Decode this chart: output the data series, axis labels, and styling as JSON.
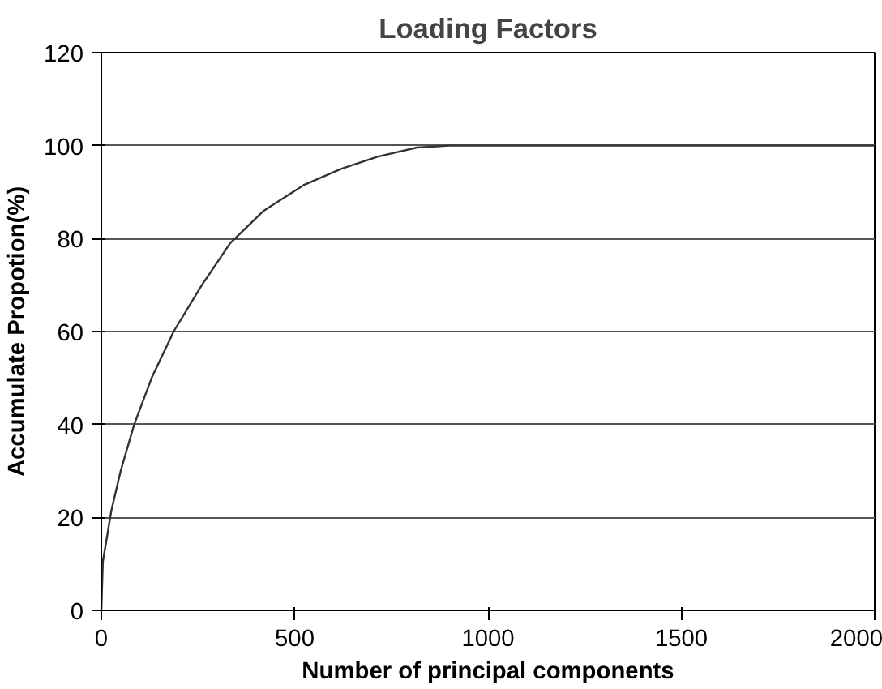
{
  "chart_data": {
    "type": "line",
    "title": "Loading Factors",
    "xlabel": "Number of principal components",
    "ylabel": "Accumulate Propotion(%)",
    "x": [
      0,
      4,
      26,
      50,
      85,
      130,
      187,
      260,
      333,
      420,
      523,
      620,
      714,
      816,
      900,
      1200,
      1600,
      2000
    ],
    "series": [
      {
        "color": "#333333",
        "values": [
          0,
          10.5,
          21.5,
          30,
          40,
          50,
          60,
          70,
          79,
          86,
          91.5,
          95,
          97.6,
          99.6,
          100,
          100,
          100,
          100
        ]
      }
    ],
    "xlim": [
      0,
      2000
    ],
    "ylim": [
      0,
      120
    ],
    "xticks": [
      0,
      500,
      1000,
      1500,
      2000
    ],
    "yticks": [
      0,
      20,
      40,
      60,
      80,
      100,
      120
    ],
    "grid": "y",
    "marker": "none",
    "line_style": "solid"
  }
}
